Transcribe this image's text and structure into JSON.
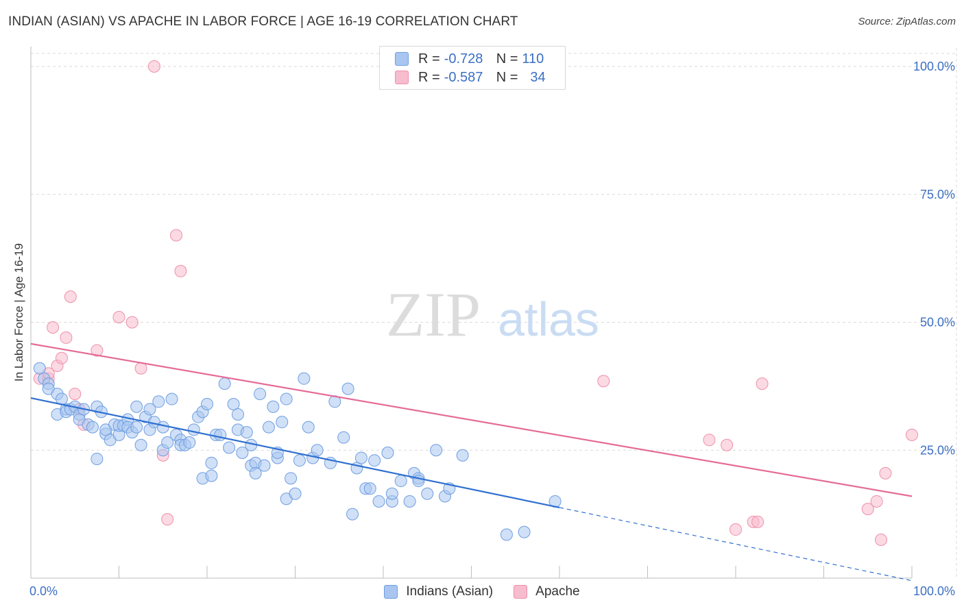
{
  "header": {
    "title": "INDIAN (ASIAN) VS APACHE IN LABOR FORCE | AGE 16-19 CORRELATION CHART",
    "source": "Source: ZipAtlas.com"
  },
  "watermark": {
    "zip": "ZIP",
    "atlas": "atlas"
  },
  "legend_top": {
    "rows": [
      {
        "r_label": "R =",
        "r_value": "-0.728",
        "n_label": "N =",
        "n_value": "110"
      },
      {
        "r_label": "R =",
        "r_value": "-0.587",
        "n_label": "N =",
        "n_value": "34"
      }
    ]
  },
  "colors": {
    "blue_fill": "#a9c6f0",
    "blue_stroke": "#6e9ee0",
    "blue_line": "#2f6fd0",
    "pink_fill": "#f7bccd",
    "pink_stroke": "#ee8faa",
    "pink_line": "#e56b97",
    "tick_label": "#3b6fc4",
    "grid": "#d9d9d9"
  },
  "chart_data": {
    "type": "scatter",
    "title": "INDIAN (ASIAN) VS APACHE IN LABOR FORCE | AGE 16-19 CORRELATION CHART",
    "xlabel": "",
    "ylabel": "In Labor Force | Age 16-19",
    "xlim": [
      0,
      100
    ],
    "ylim": [
      0,
      102
    ],
    "x_tick_labels": [
      "0.0%",
      "100.0%"
    ],
    "y_ticks": [
      25,
      50,
      75,
      100
    ],
    "y_tick_labels": [
      "25.0%",
      "50.0%",
      "75.0%",
      "100.0%"
    ],
    "legend": [
      "Indians (Asian)",
      "Apache"
    ],
    "series": [
      {
        "name": "Indians (Asian)",
        "color": "#a9c6f0",
        "trend": {
          "x_start": 0,
          "y_start": 35.2,
          "x_end": 60,
          "y_end": 13.8,
          "dashed_to_x": 100,
          "dashed_to_y": -0.5
        },
        "points": [
          [
            1,
            41
          ],
          [
            1.5,
            39
          ],
          [
            2,
            38
          ],
          [
            2,
            37
          ],
          [
            3,
            36
          ],
          [
            3,
            32
          ],
          [
            3.5,
            35
          ],
          [
            4,
            33
          ],
          [
            4,
            32.5
          ],
          [
            4.5,
            33
          ],
          [
            5,
            33.5
          ],
          [
            5.5,
            32
          ],
          [
            5.5,
            31
          ],
          [
            6,
            33
          ],
          [
            6.5,
            30
          ],
          [
            7,
            29.5
          ],
          [
            7.5,
            23.3
          ],
          [
            7.5,
            33.5
          ],
          [
            8,
            32.5
          ],
          [
            8.5,
            28.2
          ],
          [
            8.5,
            29
          ],
          [
            9,
            27
          ],
          [
            9.5,
            30
          ],
          [
            10,
            28
          ],
          [
            10,
            29.8
          ],
          [
            10.5,
            29.8
          ],
          [
            11,
            31
          ],
          [
            11,
            29.5
          ],
          [
            11.5,
            28.5
          ],
          [
            12,
            29.5
          ],
          [
            12,
            33.5
          ],
          [
            12.5,
            26
          ],
          [
            13,
            31.5
          ],
          [
            13.5,
            33
          ],
          [
            13.5,
            29
          ],
          [
            14,
            30.5
          ],
          [
            14.5,
            34.5
          ],
          [
            15,
            29.5
          ],
          [
            15,
            25
          ],
          [
            15.5,
            26.5
          ],
          [
            16,
            35
          ],
          [
            16.5,
            28
          ],
          [
            17,
            27
          ],
          [
            17,
            26
          ],
          [
            17.5,
            26
          ],
          [
            18,
            26.5
          ],
          [
            18.5,
            29
          ],
          [
            19,
            31.5
          ],
          [
            19.5,
            32.5
          ],
          [
            19.5,
            19.5
          ],
          [
            20,
            34
          ],
          [
            20.5,
            20
          ],
          [
            20.5,
            22.5
          ],
          [
            21,
            28
          ],
          [
            21.5,
            28
          ],
          [
            22,
            38
          ],
          [
            22.5,
            25.5
          ],
          [
            23,
            34
          ],
          [
            23.5,
            29
          ],
          [
            23.5,
            32
          ],
          [
            24,
            24.5
          ],
          [
            24.5,
            28.5
          ],
          [
            25,
            22
          ],
          [
            25,
            26
          ],
          [
            25.5,
            22.5
          ],
          [
            25.5,
            20.5
          ],
          [
            26,
            36
          ],
          [
            26.5,
            22
          ],
          [
            27,
            29.5
          ],
          [
            27.5,
            33.5
          ],
          [
            28,
            23.5
          ],
          [
            28,
            24.5
          ],
          [
            28.5,
            30.5
          ],
          [
            29,
            35
          ],
          [
            29,
            15.5
          ],
          [
            29.5,
            19.5
          ],
          [
            30,
            16.5
          ],
          [
            30.5,
            23
          ],
          [
            31,
            39
          ],
          [
            31.5,
            29.5
          ],
          [
            32,
            23.5
          ],
          [
            32.5,
            25
          ],
          [
            34,
            22.5
          ],
          [
            34.5,
            34.5
          ],
          [
            35.5,
            27.5
          ],
          [
            36,
            37
          ],
          [
            36.5,
            12.5
          ],
          [
            37,
            21.5
          ],
          [
            37.5,
            23.5
          ],
          [
            38,
            17.5
          ],
          [
            38.5,
            17.5
          ],
          [
            39,
            23
          ],
          [
            39.5,
            15
          ],
          [
            40.5,
            24.5
          ],
          [
            41,
            15
          ],
          [
            41,
            16.5
          ],
          [
            42,
            19
          ],
          [
            43,
            15
          ],
          [
            43.5,
            20.5
          ],
          [
            44,
            19.5
          ],
          [
            44,
            19
          ],
          [
            45,
            16.5
          ],
          [
            46,
            25
          ],
          [
            47,
            16
          ],
          [
            47.5,
            17.5
          ],
          [
            49,
            24
          ],
          [
            54,
            8.5
          ],
          [
            56,
            9
          ],
          [
            59.5,
            15
          ]
        ]
      },
      {
        "name": "Apache",
        "color": "#f7bccd",
        "trend": {
          "x_start": 0,
          "y_start": 45.8,
          "x_end": 100,
          "y_end": 16
        },
        "points": [
          [
            1,
            39
          ],
          [
            2,
            39
          ],
          [
            2,
            40
          ],
          [
            2.5,
            49
          ],
          [
            3,
            41.5
          ],
          [
            3.5,
            43
          ],
          [
            4,
            47
          ],
          [
            4.5,
            55
          ],
          [
            5,
            36
          ],
          [
            5.5,
            33
          ],
          [
            6,
            30
          ],
          [
            7.5,
            44.5
          ],
          [
            10,
            51
          ],
          [
            11.5,
            50
          ],
          [
            12.5,
            41
          ],
          [
            14,
            100
          ],
          [
            15,
            24
          ],
          [
            15.5,
            11.5
          ],
          [
            16.5,
            67
          ],
          [
            17,
            60
          ],
          [
            65,
            38.5
          ],
          [
            77,
            27
          ],
          [
            79,
            26
          ],
          [
            80,
            9.5
          ],
          [
            82,
            11
          ],
          [
            82.5,
            11
          ],
          [
            83,
            38
          ],
          [
            95,
            13.5
          ],
          [
            96,
            15
          ],
          [
            96.5,
            7.5
          ],
          [
            97,
            20.5
          ],
          [
            100,
            28
          ]
        ]
      }
    ]
  }
}
